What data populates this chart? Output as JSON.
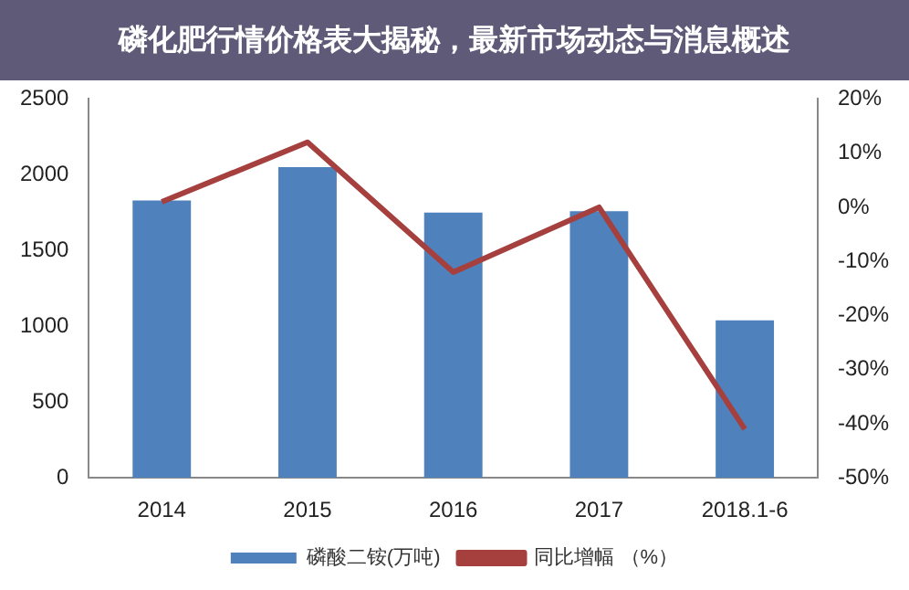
{
  "chart_data": {
    "type": "bar",
    "title": "磷化肥行情价格表大揭秘，最新市场动态与消息概述",
    "categories": [
      "2014",
      "2015",
      "2016",
      "2017",
      "2018.1-6"
    ],
    "series": [
      {
        "name": "磷酸二铵(万吨)",
        "color": "#4f81bd",
        "values": [
          1830,
          2050,
          1750,
          1760,
          1040
        ]
      },
      {
        "name": "同比增幅 （%）",
        "type": "line",
        "axis": "y2",
        "color": "#a5403e",
        "values": [
          1,
          12,
          -12,
          0,
          -41
        ]
      }
    ],
    "ylim": [
      0,
      2500
    ],
    "yticks": [
      0,
      500,
      1000,
      1500,
      2000,
      2500
    ],
    "y2lim": [
      -50,
      20
    ],
    "y2ticks": [
      {
        "value": -50,
        "label": "-50%"
      },
      {
        "value": -40,
        "label": "-40%"
      },
      {
        "value": -30,
        "label": "-30%"
      },
      {
        "value": -20,
        "label": "-20%"
      },
      {
        "value": -10,
        "label": "-10%"
      },
      {
        "value": 0,
        "label": "0%"
      },
      {
        "value": 10,
        "label": "10%"
      },
      {
        "value": 20,
        "label": "20%"
      }
    ],
    "grid": false,
    "legend": "bottom",
    "marker": "none"
  }
}
